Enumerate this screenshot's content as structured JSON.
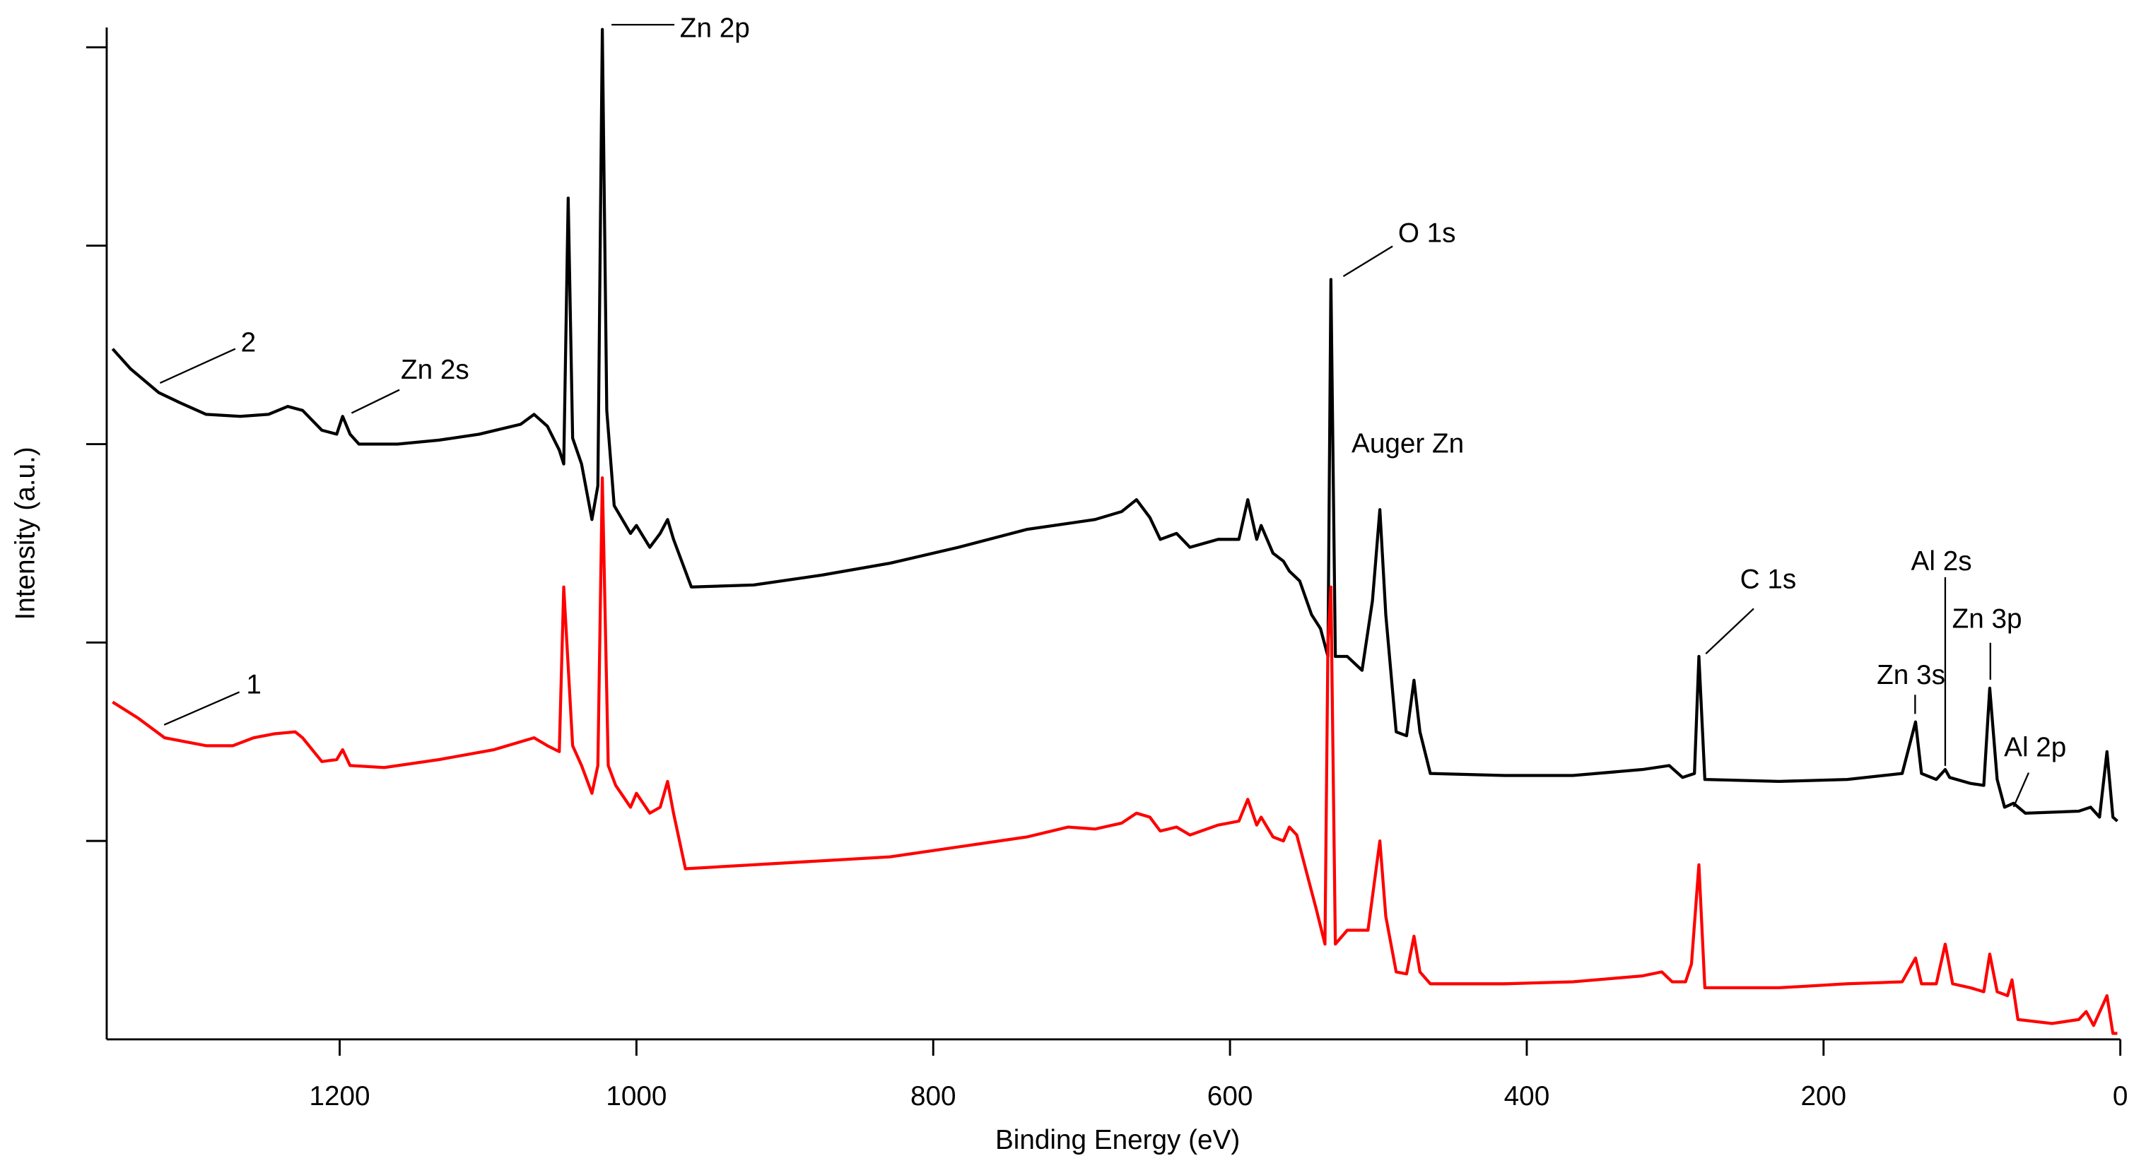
{
  "chart_data": {
    "type": "line",
    "x_label": "Binding Energy (eV)",
    "y_label": "Intensity (a.u.)",
    "xlim": [
      1357,
      0
    ],
    "xticks": [
      1200,
      1000,
      800,
      600,
      400,
      200,
      0
    ],
    "ylim": [
      0,
      5.1
    ],
    "yticks": [
      1,
      2,
      3,
      4,
      5
    ],
    "y_tick_labels": false,
    "grid": false,
    "series": [
      {
        "name": "2",
        "color": "#000000",
        "x": [
          1353,
          1341,
          1322,
          1308,
          1290,
          1267,
          1248,
          1235,
          1225,
          1212,
          1202,
          1198,
          1193,
          1187,
          1161,
          1133,
          1106,
          1078,
          1069,
          1060,
          1052,
          1049,
          1046,
          1043,
          1037,
          1030,
          1026,
          1023,
          1020,
          1015,
          1004,
          1000,
          991,
          984,
          979,
          975,
          963,
          921,
          875,
          829,
          783,
          737,
          691,
          673,
          663,
          654,
          647,
          636,
          627,
          608,
          594,
          588,
          582,
          579,
          571,
          564,
          560,
          553,
          545,
          539,
          534,
          532,
          529,
          521,
          511,
          504,
          499,
          495,
          488,
          481,
          476,
          472,
          465,
          415,
          369,
          322,
          304,
          295,
          287,
          284,
          280,
          230,
          184,
          147,
          138,
          134,
          124,
          118,
          115,
          101,
          92,
          88,
          83,
          78,
          72,
          64,
          28,
          20,
          14,
          9,
          5,
          2
        ],
        "values": [
          3.48,
          3.38,
          3.26,
          3.21,
          3.15,
          3.14,
          3.15,
          3.19,
          3.17,
          3.07,
          3.05,
          3.14,
          3.05,
          3.0,
          3.0,
          3.02,
          3.05,
          3.1,
          3.15,
          3.09,
          2.97,
          2.9,
          4.24,
          3.03,
          2.9,
          2.62,
          2.79,
          5.09,
          3.17,
          2.69,
          2.55,
          2.59,
          2.48,
          2.55,
          2.62,
          2.52,
          2.28,
          2.29,
          2.34,
          2.4,
          2.48,
          2.57,
          2.62,
          2.66,
          2.72,
          2.63,
          2.52,
          2.55,
          2.48,
          2.52,
          2.52,
          2.72,
          2.52,
          2.59,
          2.45,
          2.41,
          2.36,
          2.31,
          2.14,
          2.07,
          1.93,
          3.83,
          1.93,
          1.93,
          1.86,
          2.21,
          2.67,
          2.14,
          1.55,
          1.53,
          1.81,
          1.55,
          1.34,
          1.33,
          1.33,
          1.36,
          1.38,
          1.32,
          1.34,
          1.93,
          1.31,
          1.3,
          1.31,
          1.34,
          1.6,
          1.34,
          1.31,
          1.36,
          1.32,
          1.29,
          1.28,
          1.77,
          1.31,
          1.17,
          1.19,
          1.14,
          1.15,
          1.17,
          1.12,
          1.45,
          1.12,
          1.1
        ]
      },
      {
        "name": "1",
        "color": "#ff0000",
        "x": [
          1353,
          1336,
          1318,
          1290,
          1272,
          1258,
          1244,
          1230,
          1225,
          1212,
          1202,
          1198,
          1193,
          1170,
          1133,
          1096,
          1069,
          1060,
          1052,
          1049,
          1043,
          1037,
          1030,
          1026,
          1023,
          1019,
          1014,
          1004,
          1000,
          991,
          984,
          979,
          975,
          967,
          921,
          875,
          829,
          783,
          737,
          709,
          691,
          673,
          663,
          654,
          647,
          636,
          627,
          608,
          594,
          588,
          582,
          579,
          571,
          564,
          560,
          555,
          548,
          542,
          536,
          534,
          532,
          529,
          521,
          507,
          499,
          495,
          488,
          481,
          476,
          472,
          465,
          415,
          369,
          322,
          309,
          302,
          293,
          289,
          284,
          280,
          230,
          184,
          147,
          138,
          134,
          124,
          118,
          113,
          101,
          92,
          88,
          83,
          76,
          73,
          69,
          46,
          28,
          23,
          18,
          9,
          5,
          2
        ],
        "values": [
          1.7,
          1.62,
          1.52,
          1.48,
          1.48,
          1.52,
          1.54,
          1.55,
          1.52,
          1.4,
          1.41,
          1.46,
          1.38,
          1.37,
          1.41,
          1.46,
          1.52,
          1.48,
          1.45,
          2.28,
          1.48,
          1.38,
          1.24,
          1.38,
          2.83,
          1.38,
          1.28,
          1.17,
          1.24,
          1.14,
          1.17,
          1.3,
          1.14,
          0.86,
          0.88,
          0.9,
          0.92,
          0.97,
          1.02,
          1.07,
          1.06,
          1.09,
          1.14,
          1.12,
          1.05,
          1.07,
          1.03,
          1.08,
          1.1,
          1.21,
          1.08,
          1.12,
          1.02,
          1.0,
          1.07,
          1.03,
          0.83,
          0.66,
          0.48,
          2.0,
          2.28,
          0.48,
          0.55,
          0.55,
          1.0,
          0.62,
          0.34,
          0.33,
          0.52,
          0.34,
          0.28,
          0.28,
          0.29,
          0.32,
          0.34,
          0.29,
          0.29,
          0.38,
          0.88,
          0.26,
          0.26,
          0.28,
          0.29,
          0.41,
          0.28,
          0.28,
          0.48,
          0.28,
          0.26,
          0.24,
          0.43,
          0.24,
          0.22,
          0.3,
          0.1,
          0.08,
          0.1,
          0.14,
          0.07,
          0.22,
          0.03,
          0.03
        ]
      }
    ],
    "annotations": [
      "Zn 2p",
      "O 1s",
      "Zn 2s",
      "Auger Zn",
      "C 1s",
      "Al 2s",
      "Zn 3p",
      "Zn 3s",
      "Al 2p"
    ]
  }
}
